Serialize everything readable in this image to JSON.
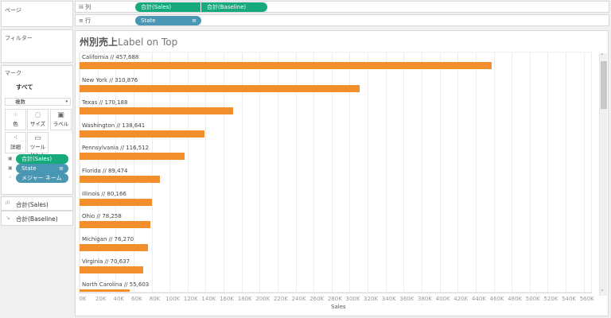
{
  "pages": {
    "label": "ページ"
  },
  "columns_shelf": {
    "label": "列",
    "pills": [
      "合計(Sales)",
      "合計(Baseline)"
    ]
  },
  "rows_shelf": {
    "label": "行",
    "pills": [
      "State"
    ]
  },
  "filters": {
    "label": "フィルター"
  },
  "marks": {
    "label": "マーク",
    "all": "すべて",
    "type": "複数",
    "buttons": [
      "色",
      "サイズ",
      "ラベル",
      "詳細",
      "ツールヒント"
    ],
    "pills": [
      "合計(Sales)",
      "State",
      "メジャー ネーム"
    ],
    "cards": [
      "合計(Sales)",
      "合計(Baseline)"
    ]
  },
  "chart": {
    "title_bold": "州別売上",
    "title_rest": "Label on Top",
    "xlabel": "Sales"
  },
  "chart_data": {
    "type": "bar",
    "title": "州別売上Label on Top",
    "xlabel": "Sales",
    "ylabel": "State",
    "categories": [
      "California",
      "New York",
      "Texas",
      "Washington",
      "Pennsylvania",
      "Florida",
      "Illinois",
      "Ohio",
      "Michigan",
      "Virginia",
      "North Carolina"
    ],
    "values": [
      457688,
      310876,
      170188,
      138641,
      116512,
      89474,
      80166,
      78258,
      76270,
      70637,
      55603
    ],
    "labels": [
      "California // 457,688",
      "New York // 310,876",
      "Texas // 170,188",
      "Washington // 138,641",
      "Pennsylvania // 116,512",
      "Florida // 89,474",
      "Illinois // 80,166",
      "Ohio // 78,258",
      "Michigan // 76,270",
      "Virginia // 70,637",
      "North Carolina // 55,603"
    ],
    "xticks": [
      "0K",
      "20K",
      "40K",
      "60K",
      "80K",
      "100K",
      "120K",
      "140K",
      "160K",
      "180K",
      "200K",
      "220K",
      "240K",
      "260K",
      "280K",
      "300K",
      "320K",
      "340K",
      "360K",
      "380K",
      "400K",
      "420K",
      "440K",
      "460K",
      "480K",
      "500K",
      "520K",
      "540K",
      "560K"
    ],
    "xlim": [
      0,
      570000
    ],
    "grid": true,
    "color": "#f28e2b"
  }
}
